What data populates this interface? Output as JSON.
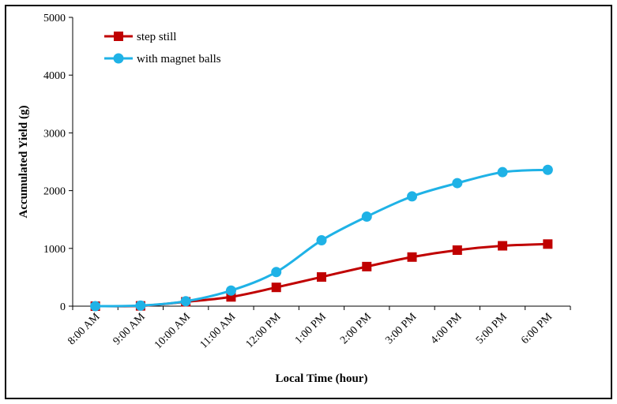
{
  "chart_data": {
    "type": "line",
    "title": "",
    "xlabel": "Local Time (hour)",
    "ylabel": "Accumulated Yield (g)",
    "categories": [
      "8:00 AM",
      "9:00 AM",
      "10:00 AM",
      "11:00 AM",
      "12:00 PM",
      "1:00 PM",
      "2:00 PM",
      "3:00 PM",
      "4:00 PM",
      "5:00 PM",
      "6:00 PM"
    ],
    "ylim": [
      0,
      5000
    ],
    "yticks": [
      0,
      1000,
      2000,
      3000,
      4000,
      5000
    ],
    "grid": false,
    "legend_position": "top-left",
    "series": [
      {
        "name": "step still",
        "marker": "square",
        "color": "#C00000",
        "values": [
          0,
          5,
          75,
          160,
          325,
          505,
          685,
          850,
          970,
          1045,
          1075
        ]
      },
      {
        "name": "with magnet balls",
        "marker": "circle",
        "color": "#1FB2E6",
        "values": [
          0,
          10,
          85,
          270,
          590,
          1140,
          1550,
          1900,
          2130,
          2320,
          2360
        ]
      }
    ]
  }
}
